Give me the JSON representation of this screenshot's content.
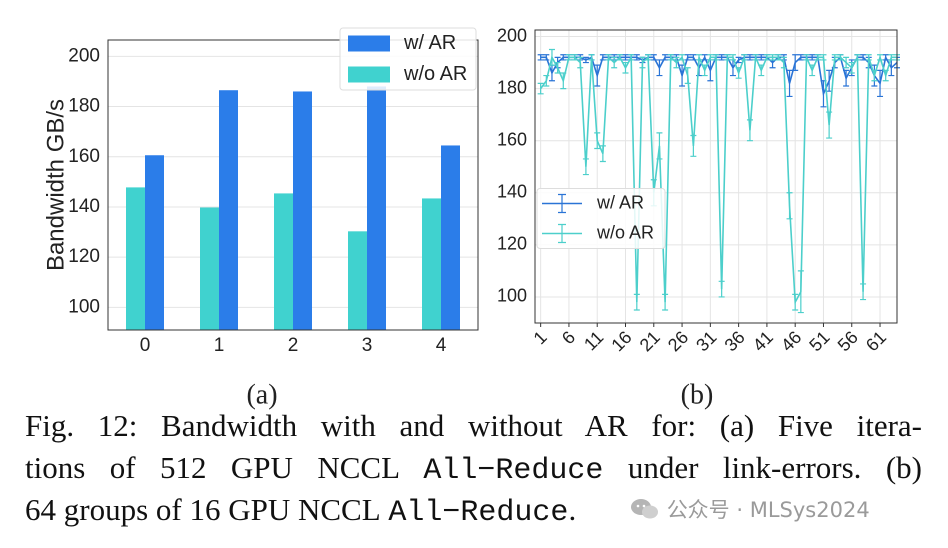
{
  "chart_data": [
    {
      "type": "bar",
      "label": "(a)",
      "ylabel": "Bandwidth GB/s",
      "categories": [
        "0",
        "1",
        "2",
        "3",
        "4"
      ],
      "series": [
        {
          "name": "w/ AR",
          "color": "#2b7de9",
          "values": [
            160.6,
            186.5,
            186,
            188,
            164.5
          ]
        },
        {
          "name": "w/o AR",
          "color": "#40d2cf",
          "values": [
            147.8,
            139.8,
            145.4,
            130.3,
            143.4
          ]
        }
      ],
      "ylim": [
        91,
        206.5
      ],
      "yticks": [
        100,
        120,
        140,
        160,
        180,
        200
      ],
      "grid": "y",
      "legend": "upper right"
    },
    {
      "type": "line",
      "label": "(b)",
      "x": [
        1,
        2,
        3,
        4,
        5,
        6,
        7,
        8,
        9,
        10,
        11,
        12,
        13,
        14,
        15,
        16,
        17,
        18,
        19,
        20,
        21,
        22,
        23,
        24,
        25,
        26,
        27,
        28,
        29,
        30,
        31,
        32,
        33,
        34,
        35,
        36,
        37,
        38,
        39,
        40,
        41,
        42,
        43,
        44,
        45,
        46,
        47,
        48,
        49,
        50,
        51,
        52,
        53,
        54,
        55,
        56,
        57,
        58,
        59,
        60,
        61,
        62,
        63,
        64
      ],
      "series": [
        {
          "name": "w/ AR",
          "color": "#2a74d6",
          "values": [
            192,
            192,
            186,
            190,
            192,
            192,
            192,
            192,
            191,
            192,
            185,
            192,
            192,
            192,
            192,
            192,
            192,
            192,
            191,
            192,
            192,
            188,
            192,
            192,
            192,
            185,
            192,
            192,
            188,
            192,
            187,
            192,
            192,
            192,
            188,
            191,
            192,
            192,
            192,
            192,
            192,
            190,
            192,
            192,
            182,
            190,
            192,
            192,
            192,
            192,
            178,
            183,
            190,
            192,
            184,
            188,
            192,
            192,
            190,
            185,
            182,
            192,
            188,
            190
          ],
          "errors": [
            1,
            1,
            3,
            2,
            1,
            1,
            1,
            1,
            1,
            1,
            4,
            1,
            1,
            1,
            1,
            1,
            1,
            1,
            1,
            1,
            1,
            3,
            1,
            1,
            1,
            4,
            1,
            1,
            3,
            1,
            4,
            1,
            1,
            1,
            3,
            1,
            1,
            1,
            1,
            1,
            1,
            2,
            1,
            1,
            5,
            3,
            1,
            1,
            1,
            1,
            5,
            4,
            2,
            1,
            3,
            3,
            1,
            1,
            2,
            4,
            5,
            1,
            3,
            2
          ]
        },
        {
          "name": "w/o AR",
          "color": "#4ccfcb",
          "values": [
            180,
            183,
            192,
            188,
            183,
            192,
            192,
            190,
            150,
            192,
            160,
            155,
            192,
            190,
            192,
            188,
            192,
            98,
            190,
            192,
            140,
            158,
            98,
            192,
            190,
            192,
            185,
            158,
            192,
            187,
            192,
            192,
            103,
            192,
            192,
            186,
            192,
            164,
            192,
            187,
            192,
            192,
            192,
            190,
            135,
            98,
            102,
            192,
            187,
            192,
            192,
            166,
            192,
            192,
            190,
            188,
            192,
            102,
            192,
            185,
            192,
            185,
            192,
            192
          ],
          "errors": [
            2,
            2,
            3,
            2,
            3,
            1,
            1,
            2,
            3,
            1,
            3,
            3,
            1,
            2,
            1,
            2,
            1,
            3,
            2,
            1,
            5,
            5,
            3,
            1,
            2,
            1,
            3,
            4,
            1,
            2,
            1,
            1,
            3,
            1,
            1,
            2,
            1,
            4,
            1,
            2,
            1,
            1,
            1,
            2,
            5,
            3,
            8,
            1,
            2,
            1,
            1,
            5,
            1,
            1,
            2,
            2,
            1,
            3,
            1,
            2,
            1,
            2,
            1,
            1
          ]
        }
      ],
      "xlim": [
        0,
        64
      ],
      "xticks": [
        1,
        6,
        11,
        16,
        21,
        26,
        31,
        36,
        41,
        46,
        51,
        56,
        61
      ],
      "ylim": [
        90,
        202.5
      ],
      "yticks": [
        100,
        120,
        140,
        160,
        180,
        200
      ],
      "grid": "both",
      "legend": "center left"
    }
  ],
  "caption": {
    "lines": [
      [
        "Fig. 12: Bandwidth with and without AR for: (a) Five itera-"
      ],
      [
        "tions of 512 GPU NCCL",
        "All−Reduce",
        "under link-errors. (b)"
      ],
      [
        "64 groups of 16 GPU NCCL",
        "All−Reduce",
        "."
      ]
    ]
  },
  "watermark": "公众号 · MLSys2024"
}
